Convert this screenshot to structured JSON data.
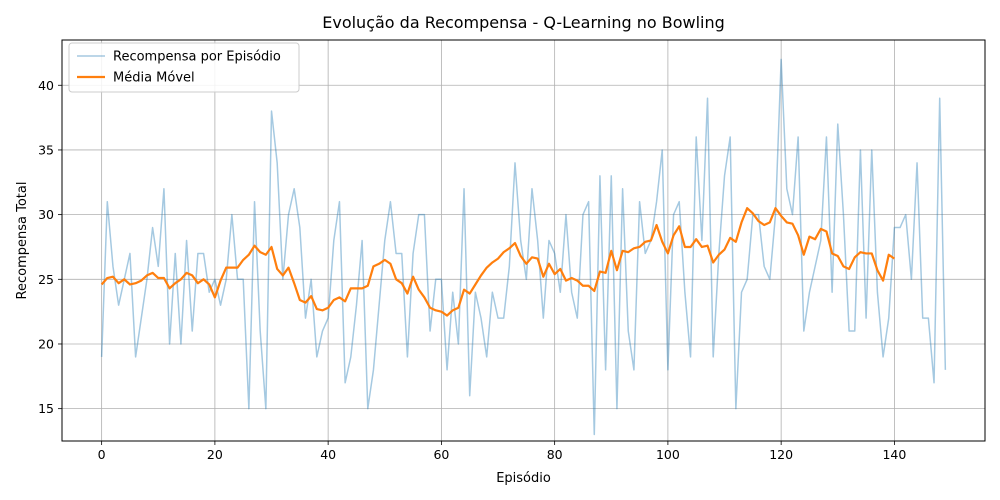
{
  "chart_data": {
    "type": "line",
    "title": "Evolução da Recompensa - Q-Learning no Bowling",
    "xlabel": "Episódio",
    "ylabel": "Recompensa Total",
    "xlim": [
      -7,
      156
    ],
    "ylim": [
      12.5,
      43.5
    ],
    "xticks": [
      0,
      20,
      40,
      60,
      80,
      100,
      120,
      140
    ],
    "yticks": [
      15,
      20,
      25,
      30,
      35,
      40
    ],
    "grid": true,
    "legend_position": "top-left",
    "series": [
      {
        "name": "Recompensa por Episódio",
        "color": "#1f77b4",
        "opacity": 0.4,
        "values": [
          19,
          31,
          26,
          23,
          25,
          27,
          19,
          22,
          25,
          29,
          26,
          32,
          20,
          27,
          20,
          28,
          21,
          27,
          27,
          24,
          25,
          23,
          25,
          30,
          25,
          25,
          15,
          31,
          21,
          15,
          38,
          34,
          25,
          30,
          32,
          29,
          22,
          25,
          19,
          21,
          22,
          28,
          31,
          17,
          19,
          23,
          28,
          15,
          18,
          23,
          28,
          31,
          27,
          27,
          19,
          27,
          30,
          30,
          21,
          25,
          25,
          18,
          24,
          20,
          32,
          16,
          24,
          22,
          19,
          24,
          22,
          22,
          26,
          34,
          28,
          25,
          32,
          28,
          22,
          28,
          27,
          24,
          30,
          24,
          22,
          30,
          31,
          13,
          33,
          18,
          33,
          15,
          32,
          21,
          18,
          31,
          27,
          28,
          31,
          35,
          18,
          30,
          31,
          24,
          19,
          36,
          28,
          39,
          19,
          27,
          33,
          36,
          15,
          24,
          25,
          30,
          30,
          26,
          25,
          30,
          42,
          32,
          30,
          36,
          21,
          24,
          26,
          28,
          36,
          24,
          37,
          30,
          21,
          21,
          35,
          22,
          35,
          24,
          19,
          22,
          29,
          29,
          30,
          25,
          34,
          22,
          22,
          17,
          39,
          18
        ]
      },
      {
        "name": "Média Móvel",
        "color": "#ff7f0e",
        "opacity": 1,
        "x_start": 0,
        "values": [
          24.6,
          25.1,
          25.2,
          24.7,
          25.0,
          24.6,
          24.7,
          24.9,
          25.3,
          25.5,
          25.1,
          25.1,
          24.3,
          24.7,
          25.0,
          25.5,
          25.3,
          24.7,
          25.0,
          24.6,
          23.6,
          24.9,
          25.9,
          25.9,
          25.9,
          26.5,
          26.9,
          27.6,
          27.1,
          26.9,
          27.5,
          25.8,
          25.3,
          25.9,
          24.7,
          23.4,
          23.2,
          23.7,
          22.7,
          22.6,
          22.8,
          23.4,
          23.6,
          23.3,
          24.3,
          24.3,
          24.3,
          24.5,
          26.0,
          26.2,
          26.5,
          26.2,
          25.0,
          24.7,
          23.9,
          25.2,
          24.2,
          23.6,
          22.8,
          22.6,
          22.5,
          22.2,
          22.6,
          22.8,
          24.2,
          23.9,
          24.6,
          25.3,
          25.9,
          26.3,
          26.6,
          27.1,
          27.4,
          27.8,
          26.8,
          26.2,
          26.7,
          26.6,
          25.2,
          26.2,
          25.4,
          25.8,
          24.9,
          25.1,
          24.9,
          24.5,
          24.5,
          24.1,
          25.6,
          25.5,
          27.2,
          25.7,
          27.2,
          27.1,
          27.4,
          27.5,
          27.9,
          28.0,
          29.2,
          27.9,
          27.0,
          28.4,
          29.1,
          27.5,
          27.5,
          28.1,
          27.5,
          27.6,
          26.3,
          26.9,
          27.3,
          28.2,
          27.9,
          29.4,
          30.5,
          30.1,
          29.5,
          29.2,
          29.4,
          30.5,
          29.9,
          29.4,
          29.3,
          28.4,
          26.9,
          28.3,
          28.1,
          28.9,
          28.7,
          27.0,
          26.8,
          26.0,
          25.8,
          26.7,
          27.1,
          27.0,
          27.0,
          25.7,
          24.9,
          26.9,
          26.6
        ]
      }
    ]
  }
}
